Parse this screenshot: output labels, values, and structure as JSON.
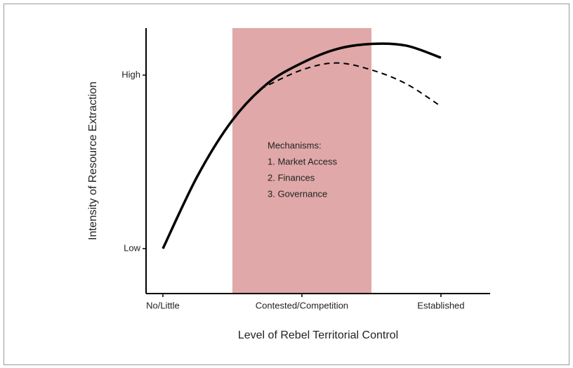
{
  "chart_data": {
    "type": "line",
    "x_label": "Level of Rebel Territorial Control",
    "y_label": "Intensity of Resource Extraction",
    "xlim": [
      -0.121,
      2.354
    ],
    "ylim": [
      -0.259,
      1.271
    ],
    "xticks": [
      {
        "value": 0,
        "label": "No/Little"
      },
      {
        "value": 1,
        "label": "Contested/Competition"
      },
      {
        "value": 2,
        "label": "Established"
      }
    ],
    "yticks": [
      {
        "value": 0,
        "label": "Low"
      },
      {
        "value": 1,
        "label": "High"
      }
    ],
    "shaded_region": [
      0.5,
      1.5
    ],
    "shaded_color": "#e0a8a8",
    "annotation": [
      "Mechanisms:",
      "1. Market Access",
      "2. Finances",
      "3. Governance"
    ],
    "series": [
      {
        "color": "#000000",
        "dash": false,
        "x": [
          0,
          0.25,
          0.5,
          0.75,
          1,
          1.25,
          1.5,
          1.75,
          2
        ],
        "values": [
          0,
          0.42,
          0.74,
          0.95,
          1.07,
          1.15,
          1.18,
          1.17,
          1.1
        ]
      },
      {
        "color": "#000000",
        "dash": true,
        "x": [
          0.7,
          1,
          1.25,
          1.5,
          1.75,
          2
        ],
        "values": [
          0.92,
          1.03,
          1.07,
          1.03,
          0.95,
          0.82
        ]
      }
    ]
  }
}
